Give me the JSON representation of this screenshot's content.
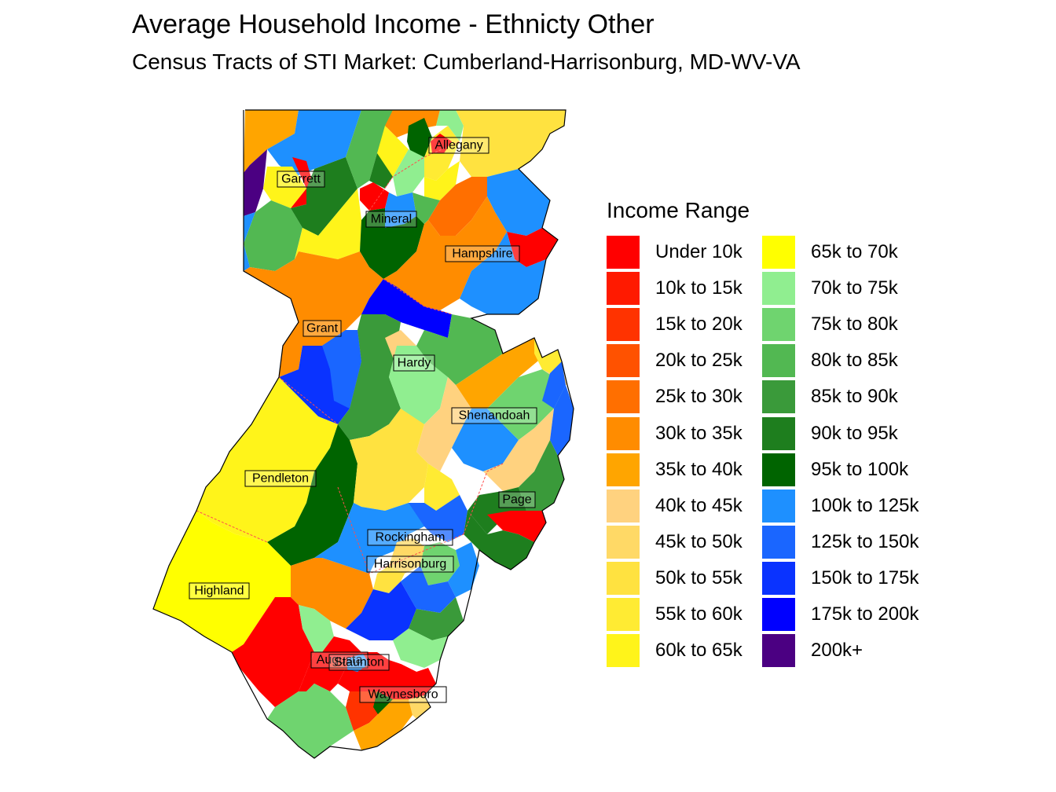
{
  "title": "Average Household Income - Ethnicty Other",
  "subtitle": "Census Tracts of STI Market: Cumberland-Harrisonburg, MD-WV-VA",
  "legend": {
    "title": "Income Range",
    "items": [
      {
        "label": "Under 10k",
        "color": "#FF0000"
      },
      {
        "label": "10k to 15k",
        "color": "#FF1A00"
      },
      {
        "label": "15k to 20k",
        "color": "#FF3300"
      },
      {
        "label": "20k to 25k",
        "color": "#FF5200"
      },
      {
        "label": "25k to 30k",
        "color": "#FF6F00"
      },
      {
        "label": "30k to 35k",
        "color": "#FF8C00"
      },
      {
        "label": "35k to 40k",
        "color": "#FFA500"
      },
      {
        "label": "40k to 45k",
        "color": "#FFD27F"
      },
      {
        "label": "45k to 50k",
        "color": "#FFD966"
      },
      {
        "label": "50k to 55k",
        "color": "#FFE240"
      },
      {
        "label": "55k to 60k",
        "color": "#FFEB33"
      },
      {
        "label": "60k to 65k",
        "color": "#FFF41A"
      },
      {
        "label": "65k to 70k",
        "color": "#FFFF00"
      },
      {
        "label": "70k to 75k",
        "color": "#90EE90"
      },
      {
        "label": "75k to 80k",
        "color": "#6FD46F"
      },
      {
        "label": "80k to 85k",
        "color": "#52B852"
      },
      {
        "label": "85k to 90k",
        "color": "#3A9A3A"
      },
      {
        "label": "90k to 95k",
        "color": "#1E7E1E"
      },
      {
        "label": "95k to 100k",
        "color": "#006400"
      },
      {
        "label": "100k to 125k",
        "color": "#1E90FF"
      },
      {
        "label": "125k to 150k",
        "color": "#1A66FF"
      },
      {
        "label": "150k to 175k",
        "color": "#0A33FF"
      },
      {
        "label": "175k to 200k",
        "color": "#0000FF"
      },
      {
        "label": "200k+",
        "color": "#4B0082"
      }
    ]
  },
  "county_labels": [
    {
      "name": "Allegany"
    },
    {
      "name": "Garrett"
    },
    {
      "name": "Mineral"
    },
    {
      "name": "Hampshire"
    },
    {
      "name": "Grant"
    },
    {
      "name": "Hardy"
    },
    {
      "name": "Shenandoah"
    },
    {
      "name": "Pendleton"
    },
    {
      "name": "Page"
    },
    {
      "name": "Rockingham"
    },
    {
      "name": "Harrisonburg"
    },
    {
      "name": "Highland"
    },
    {
      "name": "Augusta"
    },
    {
      "name": "Staunton"
    },
    {
      "name": "Waynesboro"
    }
  ]
}
